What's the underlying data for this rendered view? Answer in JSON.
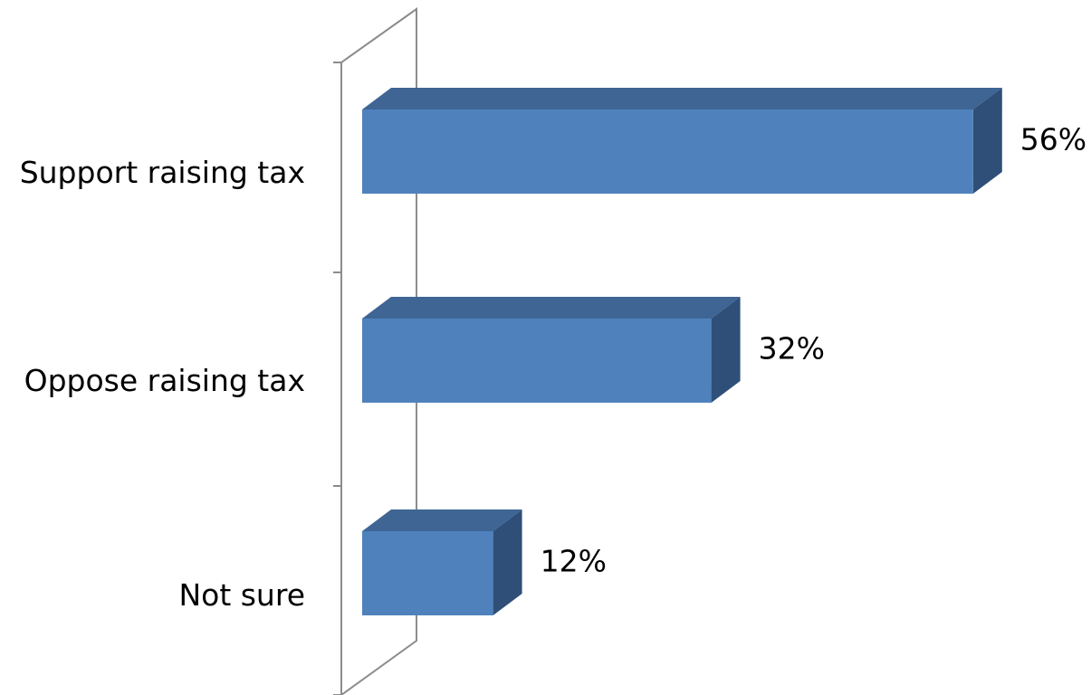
{
  "chart_data": {
    "type": "bar",
    "orientation": "horizontal",
    "style": "3d",
    "categories": [
      "Support raising tax",
      "Oppose raising tax",
      "Not sure"
    ],
    "values": [
      56,
      32,
      12
    ],
    "value_labels": [
      "56%",
      "32%",
      "12%"
    ],
    "unit": "%",
    "xlim": [
      0,
      60
    ],
    "grid": false,
    "legend": "none",
    "colors": {
      "bar_front": "#4f81bd",
      "bar_top": "#3e6594",
      "bar_side": "#2f4f79",
      "axis": "#8c8c8c"
    }
  }
}
